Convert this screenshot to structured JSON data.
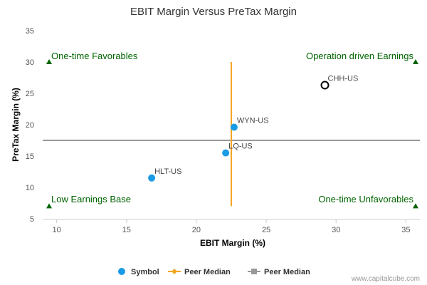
{
  "chart_data": {
    "type": "scatter",
    "title": "EBIT Margin Versus PreTax Margin",
    "xlabel": "EBIT Margin (%)",
    "ylabel": "PreTax Margin (%)",
    "xlim": [
      9,
      36
    ],
    "ylim": [
      5,
      35
    ],
    "xticks": [
      "10",
      "15",
      "20",
      "25",
      "30",
      "35"
    ],
    "yticks": [
      "5",
      "10",
      "15",
      "20",
      "25",
      "30",
      "35"
    ],
    "grid": false,
    "points": [
      {
        "label": "HLT-US",
        "x": 16.8,
        "y": 11.5,
        "highlight": false
      },
      {
        "label": "LQ-US",
        "x": 22.1,
        "y": 15.5,
        "highlight": false
      },
      {
        "label": "WYN-US",
        "x": 22.7,
        "y": 19.6,
        "highlight": false
      },
      {
        "label": "CHH-US",
        "x": 29.2,
        "y": 26.3,
        "highlight": true
      }
    ],
    "peer_median_x": {
      "name": "Peer Median",
      "x": 22.5,
      "y_range": [
        7,
        30
      ],
      "color": "#f5a623"
    },
    "peer_median_y": {
      "name": "Peer Median",
      "y": 17.5,
      "x_range": [
        9,
        36
      ],
      "color": "#999999"
    },
    "quadrants": {
      "top_left": "One-time Favorables",
      "top_right": "Operation driven Earnings",
      "bottom_left": "Low Earnings Base",
      "bottom_right": "One-time Unfavorables"
    },
    "quadrant_markers": [
      {
        "x": 9,
        "y": 30
      },
      {
        "x": 36,
        "y": 30
      },
      {
        "x": 9,
        "y": 7
      },
      {
        "x": 36,
        "y": 7
      }
    ],
    "legend": {
      "placement": "bottom",
      "items": [
        {
          "label": "Symbol",
          "color": "#1a9be6"
        },
        {
          "label": "Peer Median",
          "color": "#f5a623"
        },
        {
          "label": "Peer Median",
          "color": "#999999"
        }
      ]
    },
    "colors": {
      "point": "#1a9be6",
      "quadrant_text": "#006400",
      "marker": "#006400"
    }
  },
  "credit": "www.capitalcube.com"
}
